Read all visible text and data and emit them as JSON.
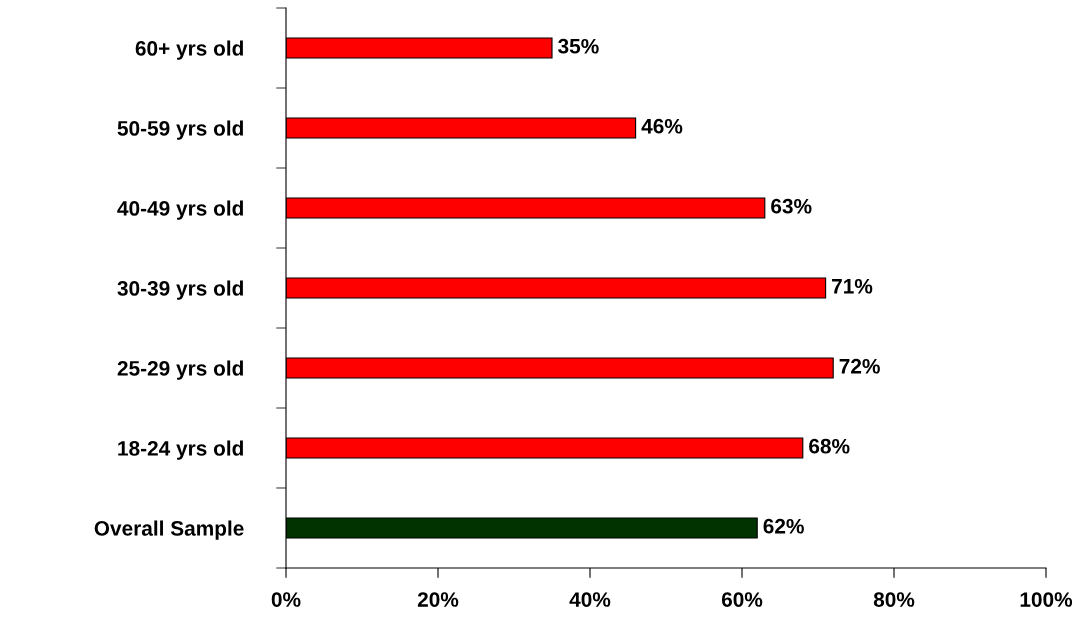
{
  "chart_data": {
    "type": "bar",
    "orientation": "horizontal",
    "categories": [
      "60+ yrs old",
      "50-59 yrs old",
      "40-49 yrs old",
      "30-39 yrs old",
      "25-29 yrs old",
      "18-24 yrs old",
      "Overall Sample"
    ],
    "values": [
      35,
      46,
      63,
      71,
      72,
      68,
      62
    ],
    "colors": [
      "#ff0000",
      "#ff0000",
      "#ff0000",
      "#ff0000",
      "#ff0000",
      "#ff0000",
      "#003300"
    ],
    "value_labels": [
      "35%",
      "46%",
      "63%",
      "71%",
      "72%",
      "68%",
      "62%"
    ],
    "xlim": [
      0,
      100
    ],
    "xticks": [
      {
        "value": 0,
        "label": "0%"
      },
      {
        "value": 20,
        "label": "20%"
      },
      {
        "value": 40,
        "label": "40%"
      },
      {
        "value": 60,
        "label": "60%"
      },
      {
        "value": 80,
        "label": "80%"
      },
      {
        "value": 100,
        "label": "100%"
      }
    ],
    "grid": false
  }
}
